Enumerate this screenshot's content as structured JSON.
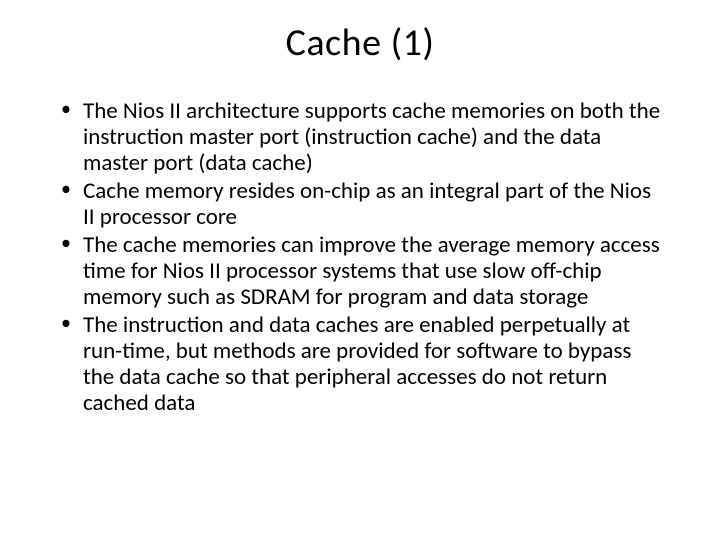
{
  "slide": {
    "title": "Cache (1)",
    "bullets": [
      "The Nios II architecture supports cache memories on both the instruction master port (instruction cache) and the data master port (data cache)",
      "Cache memory resides on-chip as an integral part of the Nios II processor core",
      "The cache memories can improve the average memory access time for Nios II processor systems that use slow off-chip memory such as SDRAM for program and data storage",
      "The instruction and data caches are enabled perpetually at run-time, but methods are provided for software to bypass the data cache so that peripheral accesses do not return cached data"
    ],
    "colors": {
      "background": "#ffffff",
      "text": "#000000"
    },
    "typography": {
      "title_fontsize": 38,
      "body_fontsize": 23,
      "font_family": "Calibri"
    }
  }
}
